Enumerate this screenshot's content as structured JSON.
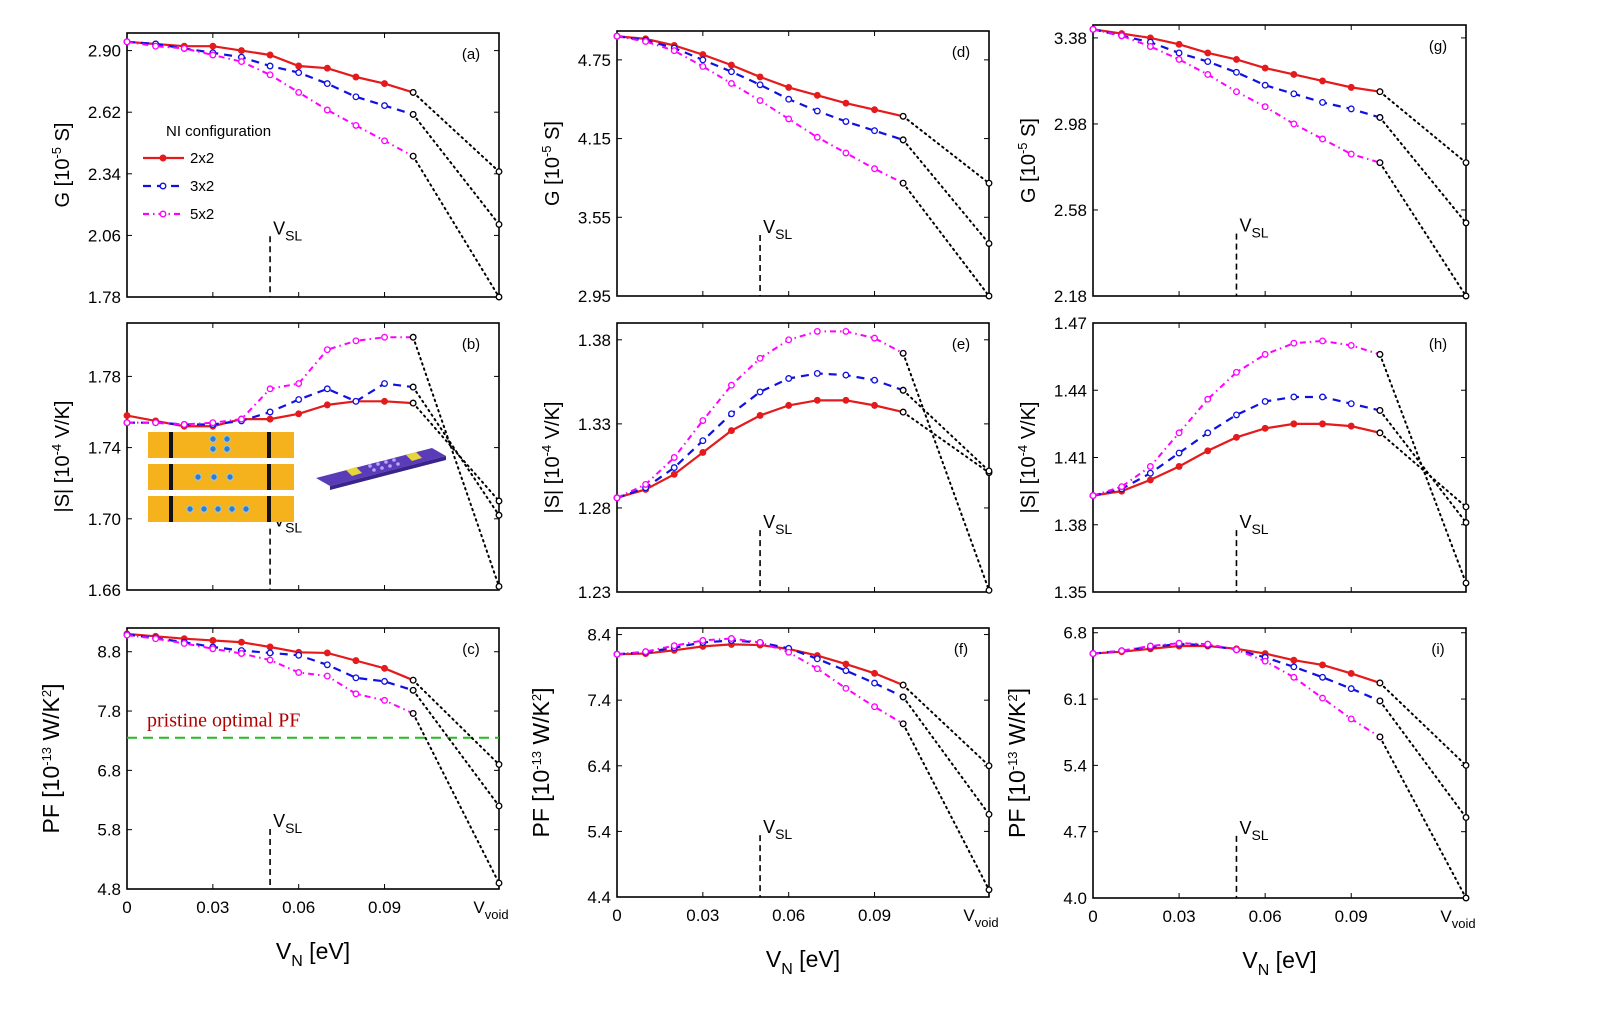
{
  "figure": {
    "x_tick_labels": [
      "0",
      "0.03",
      "0.06",
      "0.09",
      "V",
      "void"
    ],
    "x_axis_label": {
      "main": "V",
      "sub": "N",
      "rest": " [eV]"
    },
    "marker_label": {
      "main": "V",
      "sub": "SL"
    },
    "series_colors": {
      "2x2": "#e41a1c",
      "3x2": "#1010e0",
      "5x2": "#ff00ff",
      "extrapolation": "#000000",
      "reference": "#22bb22"
    }
  },
  "legend": {
    "title": "NI configuration",
    "entries": [
      "2x2",
      "3x2",
      "5x2"
    ]
  },
  "annotation": {
    "pristine_label": "pristine optimal PF"
  },
  "chart_data": [
    {
      "panel": "(a)",
      "type": "line",
      "quantity": "G",
      "ylabel": "G [10-5 S]",
      "yticks": [
        1.78,
        2.06,
        2.34,
        2.62,
        2.9
      ],
      "ylim": [
        1.78,
        2.98
      ],
      "x": [
        0,
        0.01,
        0.02,
        0.03,
        0.04,
        0.05,
        0.06,
        0.07,
        0.08,
        0.09,
        0.1
      ],
      "series": [
        {
          "name": "2x2",
          "values": [
            2.94,
            2.93,
            2.92,
            2.92,
            2.9,
            2.88,
            2.83,
            2.82,
            2.78,
            2.75,
            2.71
          ]
        },
        {
          "name": "3x2",
          "values": [
            2.94,
            2.93,
            2.91,
            2.89,
            2.87,
            2.83,
            2.8,
            2.75,
            2.69,
            2.65,
            2.61
          ]
        },
        {
          "name": "5x2",
          "values": [
            2.94,
            2.92,
            2.91,
            2.88,
            2.85,
            2.79,
            2.71,
            2.63,
            2.56,
            2.49,
            2.42
          ]
        }
      ],
      "void": [
        2.35,
        2.11,
        1.78
      ]
    },
    {
      "panel": "(b)",
      "type": "line",
      "quantity": "S",
      "ylabel": "|S| [10-4 V/K]",
      "yticks": [
        1.66,
        1.7,
        1.74,
        1.78
      ],
      "ylim": [
        1.66,
        1.81
      ],
      "x": [
        0,
        0.01,
        0.02,
        0.03,
        0.04,
        0.05,
        0.06,
        0.07,
        0.08,
        0.09,
        0.1
      ],
      "series": [
        {
          "name": "2x2",
          "values": [
            1.758,
            1.755,
            1.752,
            1.752,
            1.756,
            1.756,
            1.759,
            1.764,
            1.766,
            1.766,
            1.765
          ]
        },
        {
          "name": "3x2",
          "values": [
            1.754,
            1.754,
            1.753,
            1.753,
            1.755,
            1.76,
            1.767,
            1.773,
            1.766,
            1.776,
            1.774
          ]
        },
        {
          "name": "5x2",
          "values": [
            1.754,
            1.754,
            1.753,
            1.754,
            1.756,
            1.773,
            1.776,
            1.795,
            1.8,
            1.802,
            1.802
          ]
        }
      ],
      "void": [
        1.71,
        1.702,
        1.662
      ]
    },
    {
      "panel": "(c)",
      "type": "line",
      "quantity": "PF",
      "ylabel": "PF [10-13 W/K2]",
      "yticks": [
        4.8,
        5.8,
        6.8,
        7.8,
        8.8
      ],
      "ylim": [
        4.8,
        9.2
      ],
      "x": [
        0,
        0.01,
        0.02,
        0.03,
        0.04,
        0.05,
        0.06,
        0.07,
        0.08,
        0.09,
        0.1
      ],
      "series": [
        {
          "name": "2x2",
          "values": [
            9.1,
            9.06,
            9.02,
            8.99,
            8.96,
            8.88,
            8.79,
            8.78,
            8.65,
            8.52,
            8.32
          ]
        },
        {
          "name": "3x2",
          "values": [
            9.09,
            9.03,
            8.96,
            8.88,
            8.82,
            8.78,
            8.74,
            8.58,
            8.36,
            8.3,
            8.15
          ]
        },
        {
          "name": "5x2",
          "values": [
            9.08,
            9.02,
            8.94,
            8.85,
            8.77,
            8.66,
            8.45,
            8.39,
            8.09,
            7.98,
            7.76
          ]
        }
      ],
      "void": [
        6.9,
        6.2,
        4.9
      ],
      "reference": 7.35
    },
    {
      "panel": "(d)",
      "type": "line",
      "quantity": "G",
      "ylabel": "G [10-5 S]",
      "yticks": [
        2.95,
        3.55,
        4.15,
        4.75
      ],
      "ylim": [
        2.95,
        4.97
      ],
      "x": [
        0,
        0.01,
        0.02,
        0.03,
        0.04,
        0.05,
        0.06,
        0.07,
        0.08,
        0.09,
        0.1
      ],
      "series": [
        {
          "name": "2x2",
          "values": [
            4.93,
            4.91,
            4.86,
            4.79,
            4.71,
            4.62,
            4.54,
            4.48,
            4.42,
            4.37,
            4.32
          ]
        },
        {
          "name": "3x2",
          "values": [
            4.93,
            4.9,
            4.84,
            4.75,
            4.66,
            4.56,
            4.45,
            4.36,
            4.28,
            4.21,
            4.14
          ]
        },
        {
          "name": "5x2",
          "values": [
            4.93,
            4.89,
            4.82,
            4.7,
            4.57,
            4.44,
            4.3,
            4.16,
            4.04,
            3.92,
            3.81
          ]
        }
      ],
      "void": [
        3.81,
        3.35,
        2.95
      ]
    },
    {
      "panel": "(e)",
      "type": "line",
      "quantity": "S",
      "ylabel": "|S| [10-4 V/K]",
      "yticks": [
        1.23,
        1.28,
        1.33,
        1.38
      ],
      "ylim": [
        1.23,
        1.39
      ],
      "x": [
        0,
        0.01,
        0.02,
        0.03,
        0.04,
        0.05,
        0.06,
        0.07,
        0.08,
        0.09,
        0.1
      ],
      "series": [
        {
          "name": "2x2",
          "values": [
            1.286,
            1.291,
            1.3,
            1.313,
            1.326,
            1.335,
            1.341,
            1.344,
            1.344,
            1.341,
            1.337
          ]
        },
        {
          "name": "3x2",
          "values": [
            1.286,
            1.292,
            1.304,
            1.32,
            1.336,
            1.349,
            1.357,
            1.36,
            1.359,
            1.356,
            1.35
          ]
        },
        {
          "name": "5x2",
          "values": [
            1.286,
            1.294,
            1.31,
            1.332,
            1.353,
            1.369,
            1.38,
            1.385,
            1.385,
            1.381,
            1.372
          ]
        }
      ],
      "void": [
        1.301,
        1.302,
        1.231
      ]
    },
    {
      "panel": "(f)",
      "type": "line",
      "quantity": "PF",
      "ylabel": "PF [10-13 W/K2]",
      "yticks": [
        4.4,
        5.4,
        6.4,
        7.4,
        8.4
      ],
      "ylim": [
        4.4,
        8.5
      ],
      "x": [
        0,
        0.01,
        0.02,
        0.03,
        0.04,
        0.05,
        0.06,
        0.07,
        0.08,
        0.09,
        0.1
      ],
      "series": [
        {
          "name": "2x2",
          "values": [
            8.1,
            8.11,
            8.16,
            8.22,
            8.25,
            8.24,
            8.18,
            8.08,
            7.95,
            7.81,
            7.63
          ]
        },
        {
          "name": "3x2",
          "values": [
            8.1,
            8.13,
            8.2,
            8.28,
            8.31,
            8.28,
            8.19,
            8.03,
            7.85,
            7.66,
            7.45
          ]
        },
        {
          "name": "5x2",
          "values": [
            8.1,
            8.14,
            8.23,
            8.31,
            8.34,
            8.28,
            8.13,
            7.88,
            7.58,
            7.3,
            7.04
          ]
        }
      ],
      "void": [
        6.4,
        5.66,
        4.51
      ]
    },
    {
      "panel": "(g)",
      "type": "line",
      "quantity": "G",
      "ylabel": "G [10-5 S]",
      "yticks": [
        2.18,
        2.58,
        2.98,
        3.38
      ],
      "ylim": [
        2.18,
        3.44
      ],
      "x": [
        0,
        0.01,
        0.02,
        0.03,
        0.04,
        0.05,
        0.06,
        0.07,
        0.08,
        0.09,
        0.1
      ],
      "series": [
        {
          "name": "2x2",
          "values": [
            3.42,
            3.4,
            3.38,
            3.35,
            3.31,
            3.28,
            3.24,
            3.21,
            3.18,
            3.15,
            3.13
          ]
        },
        {
          "name": "3x2",
          "values": [
            3.42,
            3.39,
            3.36,
            3.31,
            3.27,
            3.22,
            3.16,
            3.12,
            3.08,
            3.05,
            3.01
          ]
        },
        {
          "name": "5x2",
          "values": [
            3.42,
            3.39,
            3.34,
            3.28,
            3.21,
            3.13,
            3.06,
            2.98,
            2.91,
            2.84,
            2.8
          ]
        }
      ],
      "void": [
        2.8,
        2.52,
        2.18
      ]
    },
    {
      "panel": "(h)",
      "type": "line",
      "quantity": "S",
      "ylabel": "|S| [10-4 V/K]",
      "yticks": [
        1.35,
        1.38,
        1.41,
        1.44,
        1.47
      ],
      "ylim": [
        1.35,
        1.47
      ],
      "x": [
        0,
        0.01,
        0.02,
        0.03,
        0.04,
        0.05,
        0.06,
        0.07,
        0.08,
        0.09,
        0.1
      ],
      "series": [
        {
          "name": "2x2",
          "values": [
            1.393,
            1.395,
            1.4,
            1.406,
            1.413,
            1.419,
            1.423,
            1.425,
            1.425,
            1.424,
            1.421
          ]
        },
        {
          "name": "3x2",
          "values": [
            1.393,
            1.396,
            1.403,
            1.412,
            1.421,
            1.429,
            1.435,
            1.437,
            1.437,
            1.434,
            1.431
          ]
        },
        {
          "name": "5x2",
          "values": [
            1.393,
            1.397,
            1.406,
            1.421,
            1.436,
            1.448,
            1.456,
            1.461,
            1.462,
            1.46,
            1.456
          ]
        }
      ],
      "void": [
        1.388,
        1.381,
        1.354
      ]
    },
    {
      "panel": "(i)",
      "type": "line",
      "quantity": "PF",
      "ylabel": "PF [10-13 W/K2]",
      "yticks": [
        4.0,
        4.7,
        5.4,
        6.1,
        6.8
      ],
      "ylim": [
        4.0,
        6.85
      ],
      "x": [
        0,
        0.01,
        0.02,
        0.03,
        0.04,
        0.05,
        0.06,
        0.07,
        0.08,
        0.09,
        0.1
      ],
      "series": [
        {
          "name": "2x2",
          "values": [
            6.58,
            6.6,
            6.63,
            6.66,
            6.66,
            6.63,
            6.58,
            6.51,
            6.46,
            6.37,
            6.27
          ]
        },
        {
          "name": "3x2",
          "values": [
            6.58,
            6.61,
            6.65,
            6.68,
            6.67,
            6.62,
            6.54,
            6.44,
            6.33,
            6.21,
            6.08
          ]
        },
        {
          "name": "5x2",
          "values": [
            6.58,
            6.61,
            6.66,
            6.69,
            6.68,
            6.62,
            6.5,
            6.33,
            6.11,
            5.89,
            5.7
          ]
        }
      ],
      "void": [
        5.4,
        4.85,
        4.0
      ]
    }
  ]
}
